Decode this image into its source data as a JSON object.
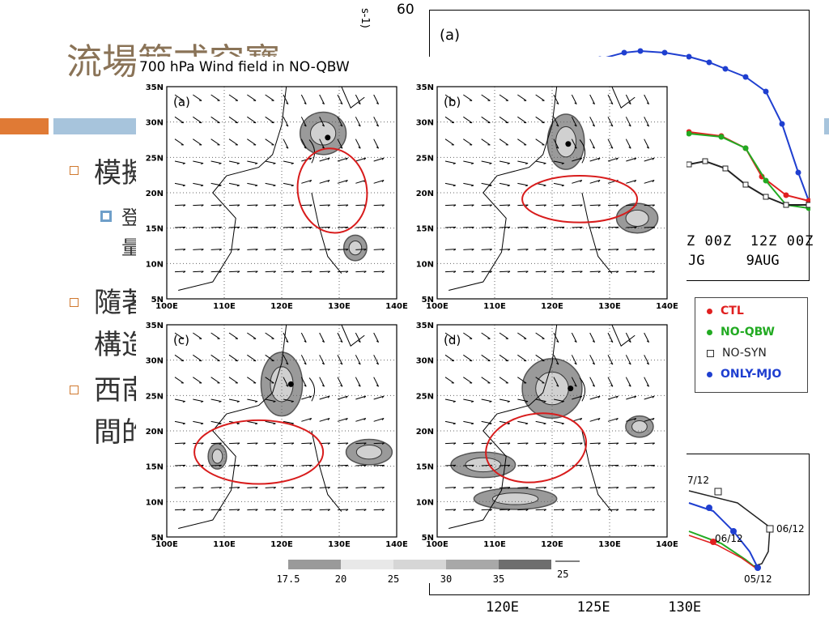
{
  "slide": {
    "title": "流場範式究寶",
    "bullets": [
      {
        "text": "模擬"
      },
      {
        "sub": "登",
        "sub2": "量"
      },
      {
        "text": "隨著",
        "text2": "構造"
      },
      {
        "text": "西南",
        "text2": "間的"
      }
    ]
  },
  "figure": {
    "title": "700 hPa Wind field in NO-QBW",
    "panels": [
      {
        "label": "(a)"
      },
      {
        "label": "(b)"
      },
      {
        "label": "(c)"
      },
      {
        "label": "(d)"
      }
    ],
    "lat_ticks": [
      "35N",
      "30N",
      "25N",
      "20N",
      "15N",
      "10N",
      "5N"
    ],
    "lon_ticks": [
      "100E",
      "110E",
      "120E",
      "130E",
      "140E"
    ],
    "colorbar": {
      "labels": [
        "17.5",
        "20",
        "25",
        "30",
        "35"
      ],
      "vector_ref": "25"
    }
  },
  "bg_chart": {
    "label": "(a)",
    "y_top": "60",
    "ylabel_fragment": "s-1)",
    "x_ticks": [
      "Z",
      "00Z",
      "12Z",
      "00Z"
    ],
    "x_sub": [
      "JG",
      "9AUG"
    ],
    "legend": [
      {
        "name": "CTL",
        "color": "#e02020",
        "marker": "dot"
      },
      {
        "name": "NO-QBW",
        "color": "#22aa22",
        "marker": "dot"
      },
      {
        "name": "NO-SYN",
        "color": "#222222",
        "marker": "square"
      },
      {
        "name": "ONLY-MJO",
        "color": "#1f3fd0",
        "marker": "dot"
      }
    ]
  },
  "bg_track": {
    "labels": [
      "7/12",
      "06/12",
      "06/12",
      "05/12"
    ],
    "x_ticks": [
      "120E",
      "125E",
      "130E"
    ]
  }
}
